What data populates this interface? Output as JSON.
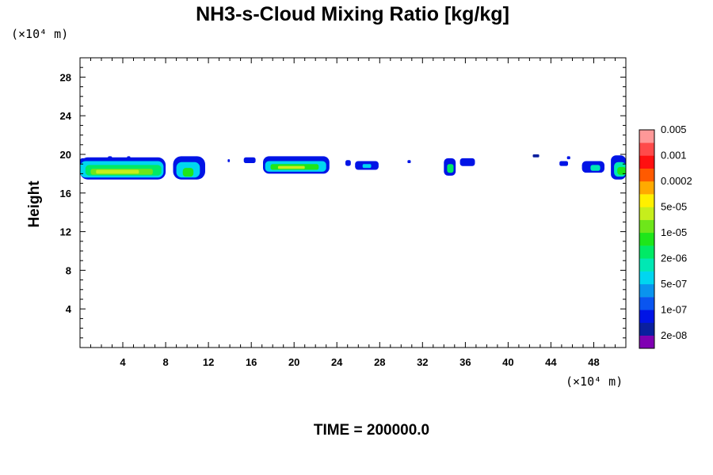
{
  "chart_data": {
    "type": "contour",
    "title": "NH3-s-Cloud Mixing Ratio [kg/kg]",
    "xlabel": "",
    "ylabel": "Height",
    "x_unit": "(×10⁴ m)",
    "y_unit": "(×10⁴ m)",
    "xlim": [
      0,
      51
    ],
    "ylim": [
      0,
      30
    ],
    "x_ticks": [
      4,
      8,
      12,
      16,
      20,
      24,
      28,
      32,
      36,
      40,
      44,
      48
    ],
    "y_ticks": [
      4,
      8,
      12,
      16,
      20,
      24,
      28
    ],
    "footer": "TIME = 200000.0",
    "colorbar": {
      "labels": [
        "2e-08",
        "1e-07",
        "5e-07",
        "2e-06",
        "1e-05",
        "5e-05",
        "0.0002",
        "0.001",
        "0.005"
      ],
      "colors": [
        "#7f00b2",
        "#0a1f9e",
        "#0014e6",
        "#0a55f0",
        "#0a94ee",
        "#00d6f0",
        "#00e8b4",
        "#00ea66",
        "#1ee61a",
        "#6ee61a",
        "#c6ee1c",
        "#fff000",
        "#ffaa00",
        "#ff5a00",
        "#ff1010",
        "#ff4a4a",
        "#ff9898"
      ]
    },
    "cloud_patches": [
      {
        "x0": 0.0,
        "x1": 1.6,
        "y0": 18.9,
        "y1": 19.6,
        "level": 2
      },
      {
        "x0": 0.0,
        "x1": 8.0,
        "y0": 17.4,
        "y1": 19.7,
        "level": 2
      },
      {
        "x0": 0.0,
        "x1": 7.8,
        "y0": 17.6,
        "y1": 19.3,
        "level": 5
      },
      {
        "x0": 0.5,
        "x1": 7.6,
        "y0": 17.8,
        "y1": 18.9,
        "level": 7
      },
      {
        "x0": 1.0,
        "x1": 6.8,
        "y0": 17.9,
        "y1": 18.5,
        "level": 9
      },
      {
        "x0": 1.5,
        "x1": 5.5,
        "y0": 18.0,
        "y1": 18.4,
        "level": 10
      },
      {
        "x0": 2.6,
        "x1": 3.0,
        "y0": 19.3,
        "y1": 19.8,
        "level": 2
      },
      {
        "x0": 4.4,
        "x1": 4.7,
        "y0": 19.5,
        "y1": 19.8,
        "level": 2
      },
      {
        "x0": 8.7,
        "x1": 11.7,
        "y0": 17.4,
        "y1": 19.8,
        "level": 2
      },
      {
        "x0": 9.0,
        "x1": 11.2,
        "y0": 17.6,
        "y1": 19.2,
        "level": 5
      },
      {
        "x0": 9.6,
        "x1": 10.6,
        "y0": 17.7,
        "y1": 18.6,
        "level": 8
      },
      {
        "x0": 13.8,
        "x1": 14.0,
        "y0": 19.2,
        "y1": 19.5,
        "level": 2
      },
      {
        "x0": 15.3,
        "x1": 16.4,
        "y0": 19.1,
        "y1": 19.7,
        "level": 2
      },
      {
        "x0": 17.1,
        "x1": 23.3,
        "y0": 18.0,
        "y1": 19.8,
        "level": 2
      },
      {
        "x0": 17.3,
        "x1": 23.0,
        "y0": 18.2,
        "y1": 19.3,
        "level": 5
      },
      {
        "x0": 17.8,
        "x1": 22.3,
        "y0": 18.4,
        "y1": 19.0,
        "level": 8
      },
      {
        "x0": 18.5,
        "x1": 21.0,
        "y0": 18.5,
        "y1": 18.8,
        "level": 10
      },
      {
        "x0": 24.8,
        "x1": 25.3,
        "y0": 18.8,
        "y1": 19.4,
        "level": 2
      },
      {
        "x0": 25.7,
        "x1": 27.9,
        "y0": 18.4,
        "y1": 19.3,
        "level": 2
      },
      {
        "x0": 26.4,
        "x1": 27.2,
        "y0": 18.6,
        "y1": 19.0,
        "level": 5
      },
      {
        "x0": 30.6,
        "x1": 30.9,
        "y0": 19.1,
        "y1": 19.4,
        "level": 2
      },
      {
        "x0": 34.0,
        "x1": 35.1,
        "y0": 17.8,
        "y1": 19.6,
        "level": 2
      },
      {
        "x0": 34.3,
        "x1": 34.9,
        "y0": 18.1,
        "y1": 19.0,
        "level": 7
      },
      {
        "x0": 35.5,
        "x1": 36.9,
        "y0": 18.8,
        "y1": 19.6,
        "level": 2
      },
      {
        "x0": 42.3,
        "x1": 42.9,
        "y0": 19.7,
        "y1": 20.0,
        "level": 1
      },
      {
        "x0": 44.8,
        "x1": 45.6,
        "y0": 18.8,
        "y1": 19.3,
        "level": 2
      },
      {
        "x0": 45.5,
        "x1": 45.8,
        "y0": 19.5,
        "y1": 19.8,
        "level": 2
      },
      {
        "x0": 46.9,
        "x1": 49.0,
        "y0": 18.1,
        "y1": 19.3,
        "level": 2
      },
      {
        "x0": 47.7,
        "x1": 48.6,
        "y0": 18.3,
        "y1": 18.9,
        "level": 6
      },
      {
        "x0": 49.6,
        "x1": 51.0,
        "y0": 17.4,
        "y1": 19.9,
        "level": 2
      },
      {
        "x0": 49.9,
        "x1": 51.0,
        "y0": 17.7,
        "y1": 19.2,
        "level": 6
      },
      {
        "x0": 50.2,
        "x1": 51.0,
        "y0": 17.9,
        "y1": 18.7,
        "level": 8
      }
    ]
  }
}
